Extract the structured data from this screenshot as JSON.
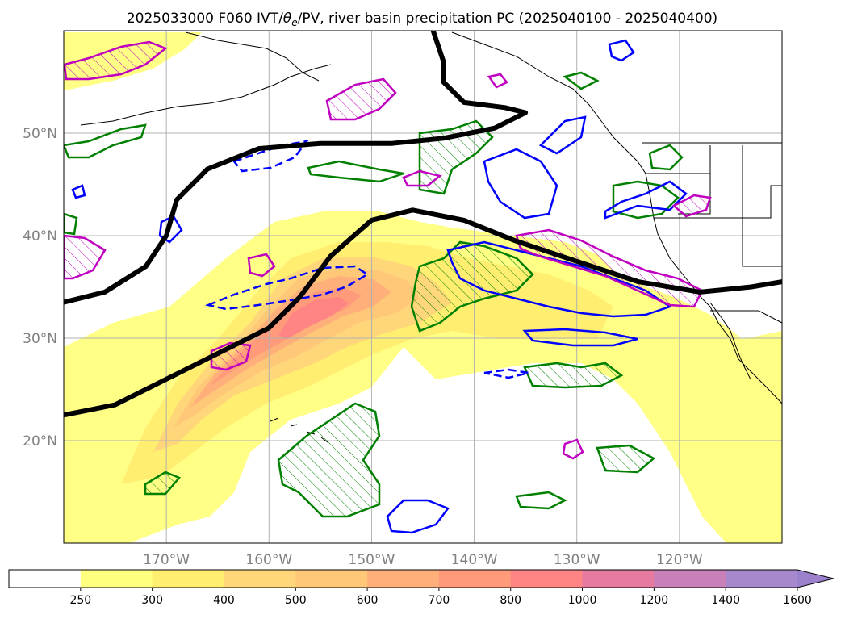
{
  "title": "2025033000 F060 IVT/θe/PV, river basin precipitation PC (2025040100 - 2025040400)",
  "title_parts": {
    "prefix": "2025033000 F060 IVT/",
    "theta": "θ",
    "sub": "e",
    "suffix": "/PV, river basin precipitation PC (2025040100 - 2025040400)"
  },
  "colors": {
    "coast": "#000000",
    "grid": "#b0b0b0",
    "thick_contour": "#000000",
    "pv_contour": "#0000ff",
    "theta_contour": "#008000",
    "precip_contour": "#c000c0"
  },
  "chart_data": {
    "type": "heatmap",
    "description_projection": "cylindrical map",
    "lon_range": [
      -180,
      -110
    ],
    "lat_range": [
      10,
      60
    ],
    "lat_ticks": [
      "50°N",
      "40°N",
      "30°N",
      "20°N"
    ],
    "lat_values": [
      50,
      40,
      30,
      20
    ],
    "lon_ticks": [
      "170°W",
      "160°W",
      "150°W",
      "140°W",
      "130°W",
      "120°W"
    ],
    "lon_values": [
      -170,
      -160,
      -150,
      -140,
      -130,
      -120
    ],
    "grid": true,
    "colorbar": {
      "levels": [
        250,
        300,
        400,
        500,
        600,
        700,
        800,
        1000,
        1200,
        1400,
        1600
      ],
      "colors": [
        "#ffffff",
        "#ffff80",
        "#ffee70",
        "#ffd77a",
        "#ffc878",
        "#ffb07a",
        "#ff9a7a",
        "#ff8585",
        "#e67aa0",
        "#c880b8",
        "#a888cc"
      ],
      "extend": "max",
      "extend_color": "#9b80cc"
    },
    "ivt_core": {
      "description": "atmospheric river IVT plume",
      "peak_value_range": [
        800,
        1000
      ],
      "peak_lat": 33,
      "peak_lon": -156
    },
    "thick_contours": [
      [
        [
          -180,
          22.5
        ],
        [
          -175,
          23.5
        ],
        [
          -170,
          26
        ],
        [
          -165,
          28.5
        ],
        [
          -160,
          31
        ],
        [
          -157,
          34
        ],
        [
          -154,
          38
        ],
        [
          -150,
          41.5
        ],
        [
          -146,
          42.5
        ],
        [
          -141,
          41.5
        ],
        [
          -136,
          39.5
        ],
        [
          -130,
          37.5
        ],
        [
          -124,
          35.5
        ],
        [
          -118,
          34.5
        ],
        [
          -113,
          35
        ],
        [
          -110,
          35.5
        ]
      ],
      [
        [
          -180,
          33.5
        ],
        [
          -176,
          34.5
        ],
        [
          -172,
          37
        ],
        [
          -170,
          40
        ],
        [
          -169,
          43.5
        ],
        [
          -166,
          46.5
        ],
        [
          -161,
          48.5
        ],
        [
          -155,
          49
        ],
        [
          -148,
          49
        ],
        [
          -143,
          49.5
        ],
        [
          -138,
          50.5
        ],
        [
          -135,
          52
        ],
        [
          -137,
          52.5
        ],
        [
          -141,
          53
        ],
        [
          -143,
          55
        ],
        [
          -143,
          57
        ],
        [
          -144,
          60
        ]
      ]
    ]
  }
}
